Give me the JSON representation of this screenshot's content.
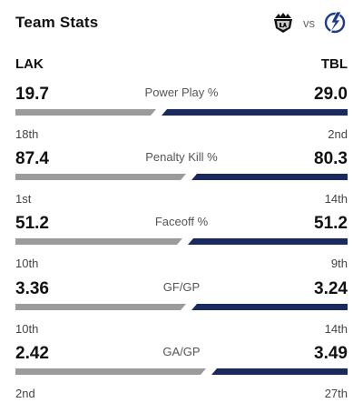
{
  "header": {
    "title": "Team Stats",
    "vs": "vs"
  },
  "teams": {
    "away": "LAK",
    "home": "TBL"
  },
  "colors": {
    "away_bar": "#9a9b9c",
    "home_bar": "#1b2a5e"
  },
  "stats": [
    {
      "label": "Power Play %",
      "away_value": "19.7",
      "home_value": "29.0",
      "away_rank": "18th",
      "home_rank": "2nd",
      "away_share": 0.44
    },
    {
      "label": "Penalty Kill %",
      "away_value": "87.4",
      "home_value": "80.3",
      "away_rank": "1st",
      "home_rank": "14th",
      "away_share": 0.53
    },
    {
      "label": "Faceoff %",
      "away_value": "51.2",
      "home_value": "51.2",
      "away_rank": "10th",
      "home_rank": "9th",
      "away_share": 0.52
    },
    {
      "label": "GF/GP",
      "away_value": "3.36",
      "home_value": "3.24",
      "away_rank": "10th",
      "home_rank": "14th",
      "away_share": 0.53
    },
    {
      "label": "GA/GP",
      "away_value": "2.42",
      "home_value": "3.49",
      "away_rank": "2nd",
      "home_rank": "27th",
      "away_share": 0.59
    }
  ]
}
